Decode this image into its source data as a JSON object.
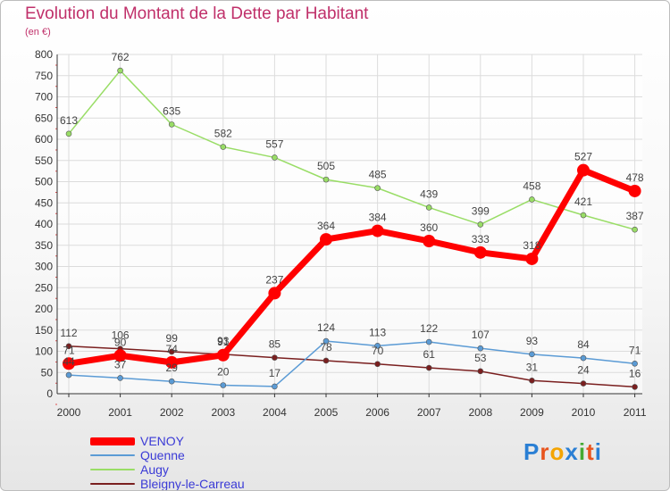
{
  "chart_data": {
    "type": "line",
    "title": "Evolution du Montant de la Dette par Habitant",
    "subtitle": "(en €)",
    "xlabel": "",
    "ylabel": "",
    "ylim": [
      0,
      800
    ],
    "yticks": [
      "0",
      "50",
      "100",
      "150",
      "200",
      "250",
      "300",
      "350",
      "400",
      "450",
      "500",
      "550",
      "600",
      "650",
      "700",
      "750",
      "800"
    ],
    "categories": [
      "2000",
      "2001",
      "2002",
      "2003",
      "2004",
      "2005",
      "2006",
      "2007",
      "2008",
      "2009",
      "2010",
      "2011"
    ],
    "grid": true,
    "legend_position": "bottom-left",
    "series": [
      {
        "name": "VENOY",
        "color": "#ff0000",
        "values": [
          71,
          90,
          74,
          91,
          237,
          364,
          384,
          360,
          333,
          318,
          527,
          478
        ],
        "labels": [
          "71",
          "90",
          "74",
          "91",
          "237",
          "364",
          "384",
          "360",
          "333",
          "318",
          "527",
          "478"
        ]
      },
      {
        "name": "Quenne",
        "color": "#5b9bd5",
        "values": [
          44,
          37,
          29,
          20,
          17,
          124,
          113,
          122,
          107,
          93,
          84,
          71
        ],
        "labels": [
          "44",
          "37",
          "29",
          "20",
          "17",
          "124",
          "113",
          "122",
          "107",
          "93",
          "84",
          "71"
        ]
      },
      {
        "name": "Augy",
        "color": "#99dd66",
        "values": [
          613,
          762,
          635,
          582,
          557,
          505,
          485,
          439,
          399,
          458,
          421,
          387
        ],
        "labels": [
          "613",
          "762",
          "635",
          "582",
          "557",
          "505",
          "485",
          "439",
          "399",
          "458",
          "421",
          "387"
        ]
      },
      {
        "name": "Bleigny-le-Carreau",
        "color": "#7a1f1f",
        "values": [
          112,
          106,
          99,
          93,
          85,
          78,
          70,
          61,
          53,
          31,
          24,
          16
        ],
        "labels": [
          "112",
          "106",
          "99",
          "93",
          "85",
          "78",
          "70",
          "61",
          "53",
          "31",
          "24",
          "16"
        ]
      }
    ]
  },
  "logo": {
    "text": "Proxiti",
    "letters": [
      "P",
      "r",
      "o",
      "x",
      "i",
      "t",
      "i"
    ],
    "colors": [
      "#2a7fd4",
      "#e8541e",
      "#f4a400",
      "#2a7fd4",
      "#44aa33",
      "#e8541e",
      "#2a7fd4"
    ]
  }
}
